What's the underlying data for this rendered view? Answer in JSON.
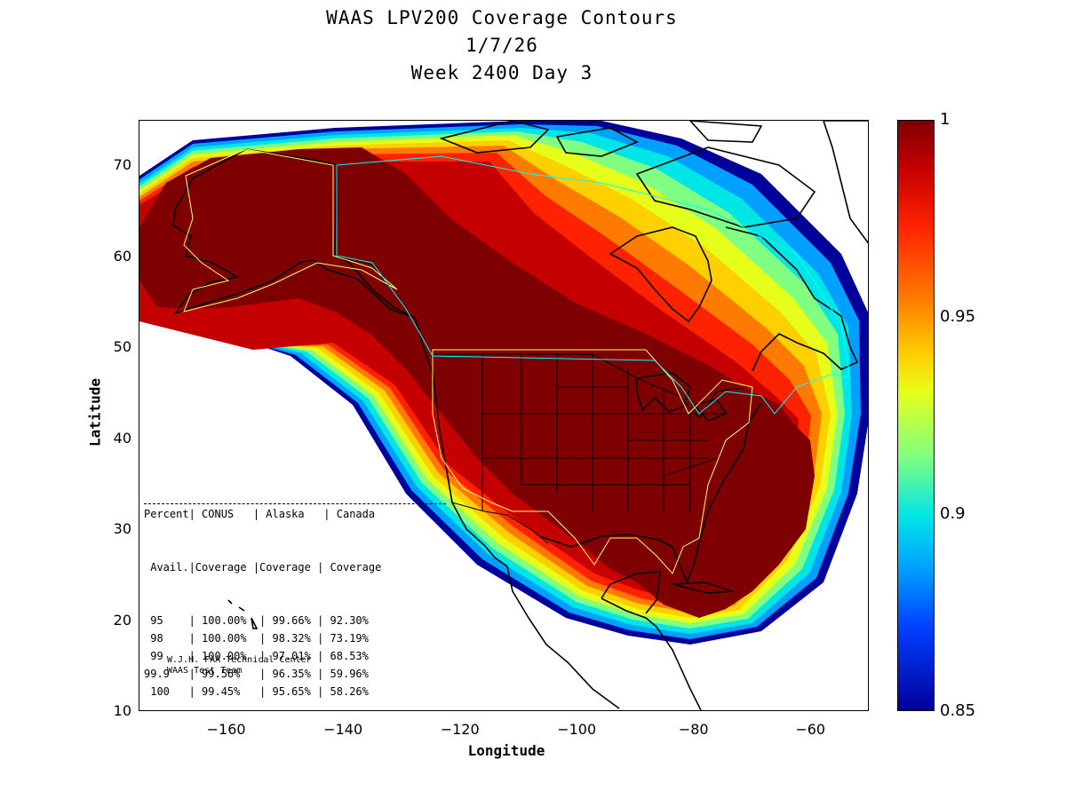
{
  "title_lines": [
    "WAAS LPV200 Coverage Contours",
    "1/7/26",
    "Week 2400 Day 3"
  ],
  "map": {
    "xlabel": "Longitude",
    "ylabel": "Latitude",
    "xlim": [
      -175,
      -50
    ],
    "ylim": [
      10,
      75
    ],
    "xticks": [
      -160,
      -140,
      -120,
      -100,
      -80,
      -60
    ],
    "yticks": [
      10,
      20,
      30,
      40,
      50,
      60,
      70
    ],
    "projection": "equirectangular"
  },
  "colorbar": {
    "range": [
      0.85,
      1
    ],
    "ticks": [
      "1",
      "0.95",
      "0.9",
      "0.85"
    ],
    "tick_values": [
      1,
      0.95,
      0.9,
      0.85
    ],
    "colormap": "jet"
  },
  "table": {
    "header1": "Percent| CONUS   | Alaska   | Canada",
    "header2": " Avail.|Coverage |Coverage | Coverage",
    "rows": [
      {
        "avail": "95",
        "conus": "100.00%",
        "alaska": "99.66%",
        "canada": "92.30%"
      },
      {
        "avail": "98",
        "conus": "100.00%",
        "alaska": "98.32%",
        "canada": "73.19%"
      },
      {
        "avail": "99",
        "conus": "100.00%",
        "alaska": "97.01%",
        "canada": "68.53%"
      },
      {
        "avail": "99.9",
        "conus": "99.56%",
        "alaska": "96.35%",
        "canada": "59.96%"
      },
      {
        "avail": "100",
        "conus": "99.45%",
        "alaska": "95.65%",
        "canada": "58.26%"
      }
    ]
  },
  "credit_lines": [
    "W.J.H. FAA Technical Center",
    "WAAS Test Team"
  ],
  "colors": {
    "c100": "#7f0000",
    "c99": "#c40000",
    "c98": "#ff2200",
    "c97": "#ff7a00",
    "c96": "#ffd000",
    "c95": "#e6ff1a",
    "c93": "#80ff80",
    "c91": "#00e6e6",
    "c89": "#00a0ff",
    "c87": "#0040ff",
    "c85": "#00009a",
    "region_outline": "#ffff66",
    "border_outline": "#00ffff"
  }
}
